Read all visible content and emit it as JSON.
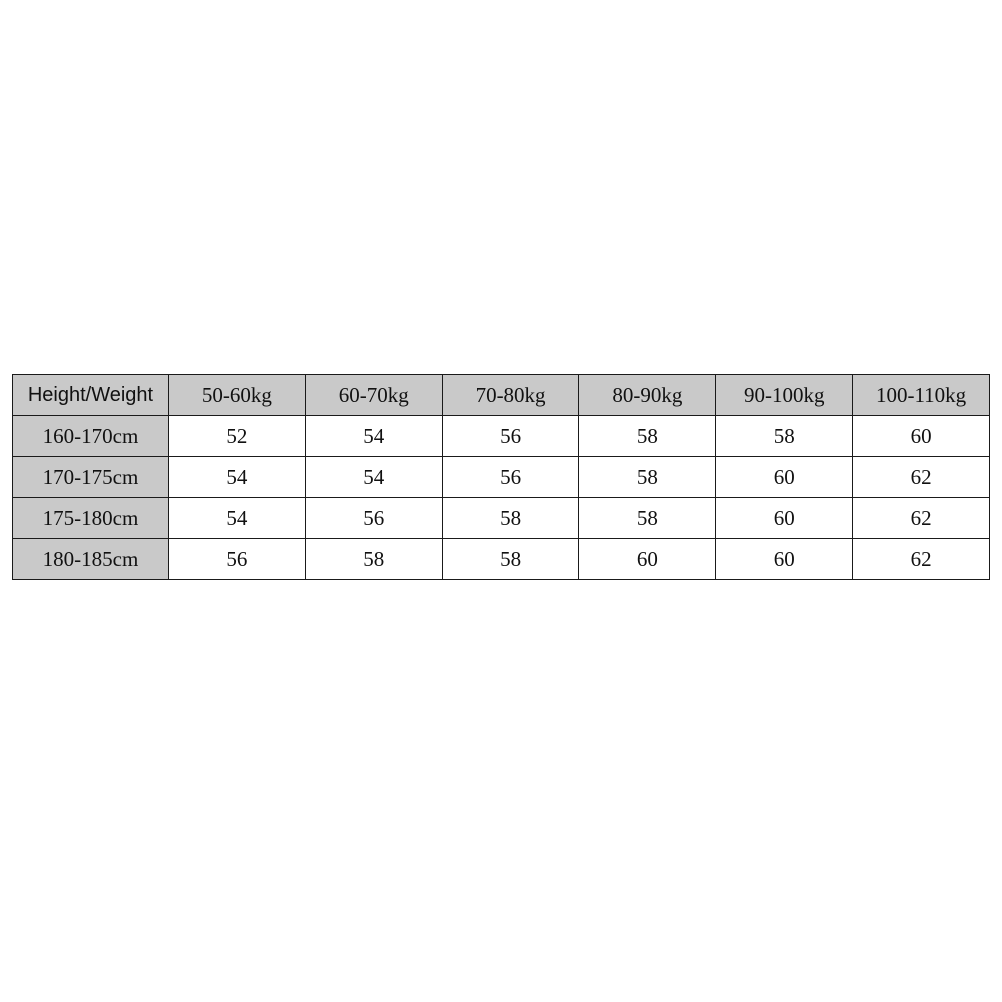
{
  "table": {
    "corner_header": "Height/Weight",
    "columns": [
      "50-60kg",
      "60-70kg",
      "70-80kg",
      "80-90kg",
      "90-100kg",
      "100-110kg"
    ],
    "rows": [
      {
        "label": "160-170cm",
        "values": [
          "52",
          "54",
          "56",
          "58",
          "58",
          "60"
        ]
      },
      {
        "label": "170-175cm",
        "values": [
          "54",
          "54",
          "56",
          "58",
          "60",
          "62"
        ]
      },
      {
        "label": "175-180cm",
        "values": [
          "54",
          "56",
          "58",
          "58",
          "60",
          "62"
        ]
      },
      {
        "label": "180-185cm",
        "values": [
          "56",
          "58",
          "58",
          "60",
          "60",
          "62"
        ]
      }
    ],
    "header_color": "#c9c9c9"
  }
}
